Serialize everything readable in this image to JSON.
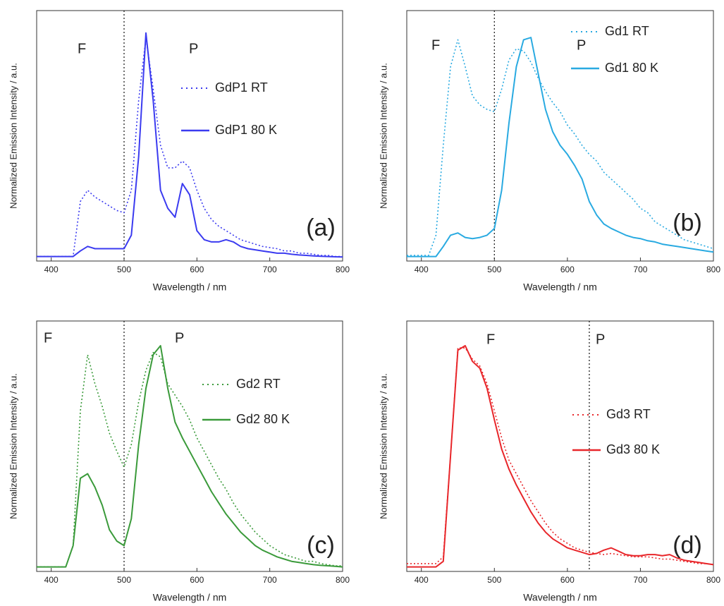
{
  "chart_data": [
    {
      "type": "line",
      "title_label": "(a)",
      "annotations": [
        "F",
        "P"
      ],
      "vline": 500,
      "xlabel": "Wavelength / nm",
      "ylabel": "Normalized Emission Intensity / a.u.",
      "xlim": [
        380,
        800
      ],
      "xticks": [
        400,
        500,
        600,
        700,
        800
      ],
      "ylim": [
        -0.015,
        1.1
      ],
      "x": [
        380,
        390,
        400,
        410,
        420,
        430,
        440,
        450,
        460,
        470,
        480,
        490,
        500,
        510,
        520,
        530,
        540,
        550,
        560,
        570,
        580,
        590,
        600,
        610,
        620,
        630,
        640,
        650,
        660,
        670,
        680,
        690,
        700,
        710,
        720,
        730,
        740,
        750,
        760,
        770,
        780,
        790,
        800
      ],
      "series": [
        {
          "name": "GdP1 RT",
          "color": "#3b3bf0",
          "style": "dotted",
          "values": [
            0.005,
            0.005,
            0.005,
            0.005,
            0.005,
            0.005,
            0.25,
            0.3,
            0.27,
            0.25,
            0.23,
            0.21,
            0.2,
            0.3,
            0.7,
            0.98,
            0.75,
            0.5,
            0.4,
            0.4,
            0.43,
            0.4,
            0.3,
            0.22,
            0.17,
            0.14,
            0.12,
            0.1,
            0.08,
            0.07,
            0.06,
            0.05,
            0.045,
            0.04,
            0.03,
            0.03,
            0.02,
            0.02,
            0.015,
            0.01,
            0.01,
            0.005,
            0.005
          ]
        },
        {
          "name": "GdP1 80 K",
          "color": "#3b3bf0",
          "style": "solid",
          "values": [
            0.005,
            0.005,
            0.005,
            0.005,
            0.005,
            0.005,
            0.03,
            0.05,
            0.04,
            0.04,
            0.04,
            0.04,
            0.04,
            0.1,
            0.45,
            1.0,
            0.7,
            0.3,
            0.22,
            0.18,
            0.33,
            0.28,
            0.12,
            0.08,
            0.07,
            0.07,
            0.08,
            0.07,
            0.05,
            0.04,
            0.035,
            0.03,
            0.025,
            0.02,
            0.02,
            0.015,
            0.012,
            0.01,
            0.008,
            0.006,
            0.005,
            0.004,
            0.003
          ]
        }
      ]
    },
    {
      "type": "line",
      "title_label": "(b)",
      "annotations": [
        "F",
        "P"
      ],
      "vline": 500,
      "xlabel": "Wavelength / nm",
      "ylabel": "Normalized Emission Intensity / a.u.",
      "xlim": [
        380,
        800
      ],
      "xticks": [
        400,
        500,
        600,
        700,
        800
      ],
      "ylim": [
        -0.015,
        1.1
      ],
      "x": [
        380,
        390,
        400,
        410,
        420,
        430,
        440,
        450,
        460,
        470,
        480,
        490,
        500,
        510,
        520,
        530,
        540,
        550,
        560,
        570,
        580,
        590,
        600,
        610,
        620,
        630,
        640,
        650,
        660,
        670,
        680,
        690,
        700,
        710,
        720,
        730,
        740,
        750,
        760,
        770,
        780,
        790,
        800
      ],
      "series": [
        {
          "name": "Gd1 RT",
          "color": "#29aae1",
          "style": "dotted",
          "values": [
            0.01,
            0.01,
            0.01,
            0.01,
            0.1,
            0.5,
            0.85,
            0.97,
            0.85,
            0.72,
            0.68,
            0.66,
            0.65,
            0.75,
            0.88,
            0.93,
            0.92,
            0.87,
            0.8,
            0.74,
            0.69,
            0.65,
            0.59,
            0.55,
            0.5,
            0.46,
            0.43,
            0.38,
            0.35,
            0.32,
            0.29,
            0.26,
            0.22,
            0.2,
            0.16,
            0.14,
            0.12,
            0.1,
            0.08,
            0.07,
            0.06,
            0.05,
            0.04
          ]
        },
        {
          "name": "Gd1 80 K",
          "color": "#29aae1",
          "style": "solid",
          "values": [
            0.005,
            0.005,
            0.005,
            0.005,
            0.005,
            0.05,
            0.1,
            0.11,
            0.09,
            0.085,
            0.09,
            0.1,
            0.13,
            0.3,
            0.6,
            0.85,
            0.97,
            0.98,
            0.82,
            0.66,
            0.56,
            0.5,
            0.46,
            0.41,
            0.35,
            0.25,
            0.19,
            0.15,
            0.13,
            0.115,
            0.1,
            0.09,
            0.085,
            0.075,
            0.07,
            0.06,
            0.055,
            0.05,
            0.045,
            0.04,
            0.035,
            0.03,
            0.025
          ]
        }
      ]
    },
    {
      "type": "line",
      "title_label": "(c)",
      "annotations": [
        "F",
        "P"
      ],
      "vline": 500,
      "xlabel": "Wavelength / nm",
      "ylabel": "Normalized Emission Intensity / a.u.",
      "xlim": [
        380,
        800
      ],
      "xticks": [
        400,
        500,
        600,
        700,
        800
      ],
      "ylim": [
        -0.015,
        1.1
      ],
      "x": [
        380,
        390,
        400,
        410,
        420,
        430,
        440,
        450,
        460,
        470,
        480,
        490,
        500,
        510,
        520,
        530,
        540,
        550,
        560,
        570,
        580,
        590,
        600,
        610,
        620,
        630,
        640,
        650,
        660,
        670,
        680,
        690,
        700,
        710,
        720,
        730,
        740,
        750,
        760,
        770,
        780,
        790,
        800
      ],
      "series": [
        {
          "name": "Gd2 RT",
          "color": "#3a9a3a",
          "style": "dotted",
          "values": [
            0.005,
            0.005,
            0.005,
            0.005,
            0.005,
            0.1,
            0.7,
            0.95,
            0.82,
            0.72,
            0.6,
            0.52,
            0.45,
            0.55,
            0.74,
            0.88,
            0.96,
            0.94,
            0.82,
            0.77,
            0.72,
            0.66,
            0.58,
            0.52,
            0.46,
            0.4,
            0.35,
            0.29,
            0.24,
            0.2,
            0.16,
            0.13,
            0.1,
            0.08,
            0.06,
            0.05,
            0.04,
            0.03,
            0.03,
            0.02,
            0.015,
            0.01,
            0.01
          ]
        },
        {
          "name": "Gd2 80 K",
          "color": "#3a9a3a",
          "style": "solid",
          "values": [
            0.005,
            0.005,
            0.005,
            0.005,
            0.005,
            0.1,
            0.4,
            0.42,
            0.36,
            0.28,
            0.17,
            0.12,
            0.1,
            0.22,
            0.55,
            0.8,
            0.95,
            0.99,
            0.8,
            0.65,
            0.58,
            0.52,
            0.46,
            0.4,
            0.34,
            0.29,
            0.24,
            0.2,
            0.16,
            0.13,
            0.1,
            0.08,
            0.065,
            0.05,
            0.04,
            0.03,
            0.025,
            0.02,
            0.015,
            0.012,
            0.01,
            0.008,
            0.005
          ]
        }
      ]
    },
    {
      "type": "line",
      "title_label": "(d)",
      "annotations": [
        "F",
        "P"
      ],
      "vline": 630,
      "xlabel": "Wavelength / nm",
      "ylabel": "Normalized Emission Intensity / a.u.",
      "xlim": [
        380,
        800
      ],
      "xticks": [
        400,
        500,
        600,
        700,
        800
      ],
      "ylim": [
        -0.015,
        1.1
      ],
      "x": [
        380,
        390,
        400,
        410,
        420,
        430,
        440,
        450,
        460,
        470,
        480,
        490,
        500,
        510,
        520,
        530,
        540,
        550,
        560,
        570,
        580,
        590,
        600,
        610,
        620,
        630,
        640,
        650,
        660,
        670,
        680,
        690,
        700,
        710,
        720,
        730,
        740,
        750,
        760,
        770,
        780,
        790,
        800
      ],
      "series": [
        {
          "name": "Gd3 RT",
          "color": "#e8262a",
          "style": "dotted",
          "values": [
            0.02,
            0.02,
            0.02,
            0.02,
            0.02,
            0.05,
            0.5,
            0.98,
            0.98,
            0.93,
            0.9,
            0.82,
            0.7,
            0.58,
            0.48,
            0.42,
            0.36,
            0.3,
            0.25,
            0.2,
            0.16,
            0.13,
            0.11,
            0.09,
            0.08,
            0.07,
            0.065,
            0.06,
            0.065,
            0.06,
            0.055,
            0.05,
            0.05,
            0.05,
            0.045,
            0.04,
            0.04,
            0.035,
            0.03,
            0.025,
            0.02,
            0.02,
            0.015
          ]
        },
        {
          "name": "Gd3 80 K",
          "color": "#e8262a",
          "style": "solid",
          "values": [
            0.005,
            0.005,
            0.005,
            0.005,
            0.005,
            0.03,
            0.5,
            0.97,
            0.99,
            0.92,
            0.89,
            0.8,
            0.66,
            0.53,
            0.44,
            0.37,
            0.31,
            0.25,
            0.2,
            0.16,
            0.13,
            0.11,
            0.09,
            0.08,
            0.07,
            0.06,
            0.065,
            0.08,
            0.09,
            0.075,
            0.06,
            0.055,
            0.055,
            0.06,
            0.06,
            0.055,
            0.06,
            0.045,
            0.035,
            0.03,
            0.025,
            0.02,
            0.015
          ]
        }
      ]
    }
  ]
}
